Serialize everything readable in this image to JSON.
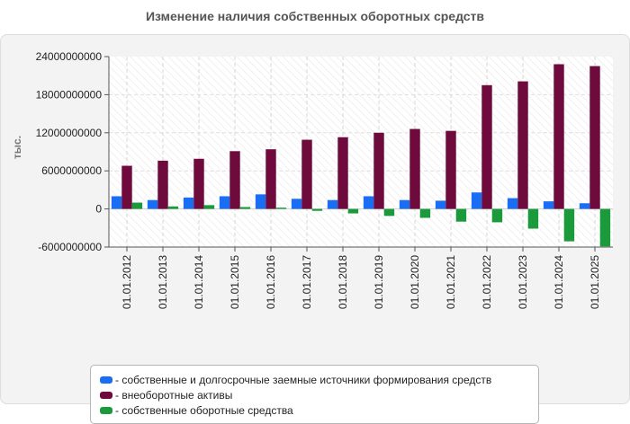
{
  "chart_data": {
    "type": "bar",
    "title": "Изменение наличия собственных оборотных средств",
    "xlabel": "",
    "ylabel": "тыс.",
    "ylim": [
      -6000000000,
      24000000000
    ],
    "yticks": [
      -6000000000,
      0,
      6000000000,
      12000000000,
      18000000000,
      24000000000
    ],
    "categories": [
      "01.01.2012",
      "01.01.2013",
      "01.01.2014",
      "01.01.2015",
      "01.01.2016",
      "01.01.2017",
      "01.01.2018",
      "01.01.2019",
      "01.01.2020",
      "01.01.2021",
      "01.01.2022",
      "01.01.2023",
      "01.01.2024",
      "01.01.2025"
    ],
    "series": [
      {
        "name": "собственные и долгосрочные заемные источники формирования средств",
        "color": "#1a6ef5",
        "values": [
          2000000000,
          1400000000,
          1800000000,
          2000000000,
          2300000000,
          1600000000,
          1400000000,
          2000000000,
          1400000000,
          1300000000,
          2600000000,
          1700000000,
          1200000000,
          900000000
        ]
      },
      {
        "name": "внеоборотные активы",
        "color": "#6e0a3c",
        "values": [
          6800000000,
          7600000000,
          7900000000,
          9100000000,
          9400000000,
          10900000000,
          11300000000,
          12000000000,
          12600000000,
          12300000000,
          19500000000,
          20100000000,
          22800000000,
          22500000000
        ]
      },
      {
        "name": "собственные оборотные средства",
        "color": "#1a9a3a",
        "values": [
          1000000000,
          400000000,
          600000000,
          300000000,
          200000000,
          -300000000,
          -700000000,
          -1100000000,
          -1400000000,
          -2000000000,
          -2100000000,
          -3100000000,
          -5100000000,
          -5900000000
        ]
      }
    ],
    "legend_position": "bottom"
  }
}
